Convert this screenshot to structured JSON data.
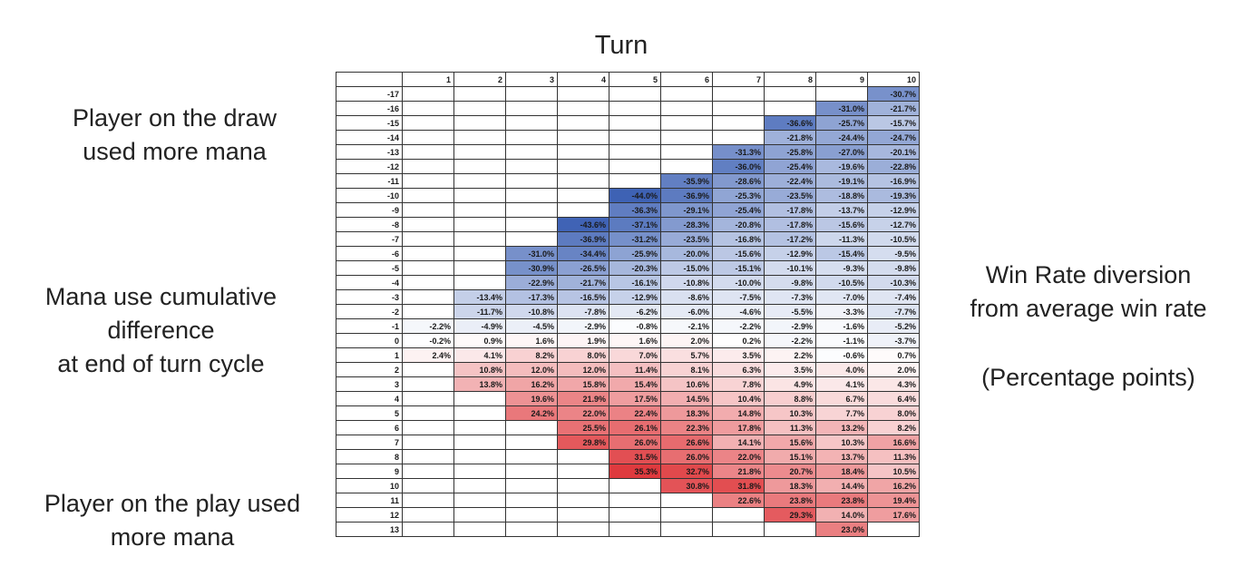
{
  "labels": {
    "turn_title": "Turn",
    "draw_lines": [
      "Player on the draw",
      "used more mana"
    ],
    "mana_lines": [
      "Mana use cumulative",
      "difference",
      "at end of turn cycle"
    ],
    "play_lines": [
      "Player on the play used",
      "more mana"
    ],
    "winrate_lines": [
      "Win Rate diversion",
      "from average win rate"
    ],
    "units_lines": [
      "(Percentage points)"
    ]
  },
  "colors": {
    "negative": "#3e62b4",
    "positive": "#df3a3e",
    "neutral": "#ffffff"
  },
  "chart_data": {
    "type": "heatmap",
    "title": "Turn",
    "xlabel": "Turn",
    "ylabel": "Mana use cumulative difference at end of turn cycle",
    "value_label": "Win Rate diversion from average win rate (Percentage points)",
    "columns": [
      "1",
      "2",
      "3",
      "4",
      "5",
      "6",
      "7",
      "8",
      "9",
      "10"
    ],
    "rows": [
      "-17",
      "-16",
      "-15",
      "-14",
      "-13",
      "-12",
      "-11",
      "-10",
      "-9",
      "-8",
      "-7",
      "-6",
      "-5",
      "-4",
      "-3",
      "-2",
      "-1",
      "0",
      "1",
      "2",
      "3",
      "4",
      "5",
      "6",
      "7",
      "8",
      "9",
      "10",
      "11",
      "12",
      "13"
    ],
    "values": [
      [
        null,
        null,
        null,
        null,
        null,
        null,
        null,
        null,
        null,
        -30.7
      ],
      [
        null,
        null,
        null,
        null,
        null,
        null,
        null,
        null,
        -31.0,
        -21.7
      ],
      [
        null,
        null,
        null,
        null,
        null,
        null,
        null,
        -36.6,
        -25.7,
        -15.7
      ],
      [
        null,
        null,
        null,
        null,
        null,
        null,
        null,
        -21.8,
        -24.4,
        -24.7
      ],
      [
        null,
        null,
        null,
        null,
        null,
        null,
        -31.3,
        -25.8,
        -27.0,
        -20.1
      ],
      [
        null,
        null,
        null,
        null,
        null,
        null,
        -36.0,
        -25.4,
        -19.6,
        -22.8
      ],
      [
        null,
        null,
        null,
        null,
        null,
        -35.9,
        -28.6,
        -22.4,
        -19.1,
        -16.9
      ],
      [
        null,
        null,
        null,
        null,
        -44.0,
        -36.9,
        -25.3,
        -23.5,
        -18.8,
        -19.3
      ],
      [
        null,
        null,
        null,
        null,
        -36.3,
        -29.1,
        -25.4,
        -17.8,
        -13.7,
        -12.9
      ],
      [
        null,
        null,
        null,
        -43.6,
        -37.1,
        -28.3,
        -20.8,
        -17.8,
        -15.6,
        -12.7
      ],
      [
        null,
        null,
        null,
        -36.9,
        -31.2,
        -23.5,
        -16.8,
        -17.2,
        -11.3,
        -10.5
      ],
      [
        null,
        null,
        -31.0,
        -34.4,
        -25.9,
        -20.0,
        -15.6,
        -12.9,
        -15.4,
        -9.5
      ],
      [
        null,
        null,
        -30.9,
        -26.5,
        -20.3,
        -15.0,
        -15.1,
        -10.1,
        -9.3,
        -9.8
      ],
      [
        null,
        null,
        -22.9,
        -21.7,
        -16.1,
        -10.8,
        -10.0,
        -9.8,
        -10.5,
        -10.3
      ],
      [
        null,
        -13.4,
        -17.3,
        -16.5,
        -12.9,
        -8.6,
        -7.5,
        -7.3,
        -7.0,
        -7.4
      ],
      [
        null,
        -11.7,
        -10.8,
        -7.8,
        -6.2,
        -6.0,
        -4.6,
        -5.5,
        -3.3,
        -7.7
      ],
      [
        -2.2,
        -4.9,
        -4.5,
        -2.9,
        -0.8,
        -2.1,
        -2.2,
        -2.9,
        -1.6,
        -5.2
      ],
      [
        -0.2,
        0.9,
        1.6,
        1.9,
        1.6,
        2.0,
        0.2,
        -2.2,
        -1.1,
        -3.7
      ],
      [
        2.4,
        4.1,
        8.2,
        8.0,
        7.0,
        5.7,
        3.5,
        2.2,
        -0.6,
        0.7
      ],
      [
        null,
        10.8,
        12.0,
        12.0,
        11.4,
        8.1,
        6.3,
        3.5,
        4.0,
        2.0
      ],
      [
        null,
        13.8,
        16.2,
        15.8,
        15.4,
        10.6,
        7.8,
        4.9,
        4.1,
        4.3
      ],
      [
        null,
        null,
        19.6,
        21.9,
        17.5,
        14.5,
        10.4,
        8.8,
        6.7,
        6.4
      ],
      [
        null,
        null,
        24.2,
        22.0,
        22.4,
        18.3,
        14.8,
        10.3,
        7.7,
        8.0
      ],
      [
        null,
        null,
        null,
        25.5,
        26.1,
        22.3,
        17.8,
        11.3,
        13.2,
        8.2
      ],
      [
        null,
        null,
        null,
        29.8,
        26.0,
        26.6,
        14.1,
        15.6,
        10.3,
        16.6
      ],
      [
        null,
        null,
        null,
        null,
        31.5,
        26.0,
        22.0,
        15.1,
        13.7,
        11.3
      ],
      [
        null,
        null,
        null,
        null,
        35.3,
        32.7,
        21.8,
        20.7,
        18.4,
        10.5
      ],
      [
        null,
        null,
        null,
        null,
        null,
        30.8,
        31.8,
        18.3,
        14.4,
        16.2
      ],
      [
        null,
        null,
        null,
        null,
        null,
        null,
        22.6,
        23.8,
        23.8,
        19.4
      ],
      [
        null,
        null,
        null,
        null,
        null,
        null,
        null,
        29.3,
        14.0,
        17.6
      ],
      [
        null,
        null,
        null,
        null,
        null,
        null,
        null,
        null,
        23.0,
        null
      ]
    ],
    "color_scale": {
      "min": -44.0,
      "max": 35.3,
      "negative_color": "#3e62b4",
      "positive_color": "#df3a3e"
    },
    "grid": true,
    "legend": "none"
  }
}
